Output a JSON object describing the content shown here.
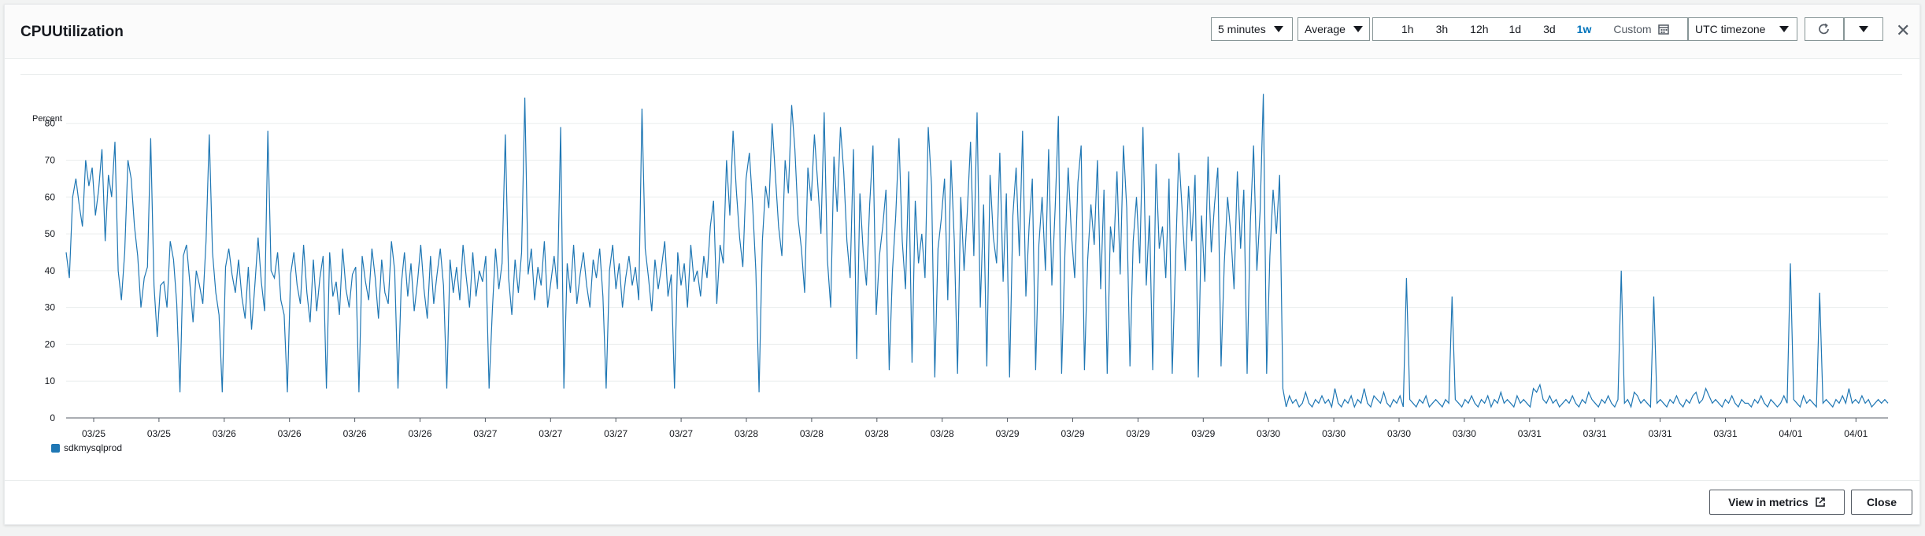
{
  "modal": {
    "title": "CPUUtilization",
    "period": {
      "value": "5 minutes"
    },
    "statistic": {
      "value": "Average"
    },
    "timerange": {
      "options": [
        "1h",
        "3h",
        "12h",
        "1d",
        "3d",
        "1w"
      ],
      "selected": "1w",
      "custom_label": "Custom"
    },
    "timezone": {
      "value": "UTC timezone"
    },
    "footer": {
      "view_in_metrics": "View in metrics",
      "close": "Close"
    }
  },
  "colors": {
    "series": "#1f77b4",
    "accent": "#0073bb"
  },
  "icons": [
    "calendar-icon",
    "refresh-icon",
    "caret-down-icon",
    "close-icon",
    "external-link-icon"
  ],
  "chart_data": {
    "type": "line",
    "ylabel": "Percent",
    "ylim": [
      0,
      87
    ],
    "yticks": [
      0,
      10,
      20,
      30,
      40,
      50,
      60,
      70,
      80
    ],
    "x_tick_labels": [
      "03/25",
      "03/25",
      "03/26",
      "03/26",
      "03/26",
      "03/26",
      "03/27",
      "03/27",
      "03/27",
      "03/27",
      "03/28",
      "03/28",
      "03/28",
      "03/28",
      "03/29",
      "03/29",
      "03/29",
      "03/29",
      "03/30",
      "03/30",
      "03/30",
      "03/30",
      "03/31",
      "03/31",
      "03/31",
      "03/31",
      "04/01",
      "04/01"
    ],
    "grid": true,
    "legend_position": "bottom-left",
    "series": [
      {
        "name": "sdkmysqlprod",
        "color": "#1f77b4",
        "values": [
          45,
          38,
          60,
          65,
          58,
          52,
          70,
          63,
          68,
          55,
          62,
          73,
          48,
          66,
          60,
          75,
          40,
          32,
          45,
          70,
          65,
          52,
          44,
          30,
          38,
          41,
          76,
          36,
          22,
          36,
          37,
          30,
          48,
          43,
          31,
          7,
          44,
          47,
          37,
          26,
          40,
          36,
          31,
          48,
          77,
          45,
          34,
          28,
          7,
          41,
          46,
          39,
          34,
          43,
          33,
          27,
          41,
          24,
          36,
          49,
          37,
          29,
          78,
          40,
          38,
          45,
          32,
          28,
          7,
          39,
          45,
          36,
          31,
          47,
          34,
          26,
          43,
          29,
          38,
          44,
          8,
          45,
          33,
          37,
          28,
          46,
          35,
          30,
          39,
          41,
          7,
          44,
          37,
          32,
          46,
          38,
          27,
          43,
          34,
          31,
          48,
          40,
          8,
          36,
          45,
          33,
          42,
          29,
          37,
          47,
          35,
          27,
          44,
          31,
          39,
          46,
          36,
          8,
          43,
          34,
          41,
          32,
          47,
          38,
          30,
          45,
          33,
          40,
          37,
          44,
          8,
          29,
          46,
          35,
          42,
          77,
          38,
          28,
          43,
          34,
          45,
          87,
          39,
          46,
          32,
          41,
          36,
          48,
          30,
          37,
          44,
          35,
          79,
          8,
          42,
          34,
          47,
          31,
          39,
          45,
          36,
          30,
          43,
          38,
          46,
          33,
          8,
          40,
          47,
          35,
          42,
          30,
          38,
          44,
          36,
          41,
          32,
          84,
          46,
          38,
          29,
          43,
          35,
          41,
          48,
          33,
          39,
          8,
          45,
          36,
          42,
          30,
          47,
          37,
          40,
          33,
          44,
          38,
          52,
          59,
          31,
          47,
          42,
          70,
          55,
          78,
          62,
          49,
          41,
          65,
          72,
          58,
          40,
          7,
          48,
          63,
          57,
          80,
          66,
          52,
          44,
          70,
          61,
          85,
          73,
          54,
          46,
          34,
          68,
          59,
          77,
          64,
          50,
          83,
          43,
          30,
          71,
          56,
          79,
          67,
          48,
          38,
          73,
          16,
          61,
          45,
          36,
          58,
          74,
          28,
          44,
          52,
          62,
          13,
          40,
          55,
          76,
          48,
          35,
          67,
          15,
          59,
          42,
          50,
          38,
          79,
          63,
          11,
          46,
          54,
          65,
          32,
          70,
          48,
          12,
          60,
          40,
          56,
          75,
          44,
          83,
          30,
          58,
          14,
          66,
          49,
          42,
          72,
          37,
          61,
          11,
          55,
          68,
          44,
          78,
          33,
          52,
          65,
          13,
          47,
          60,
          40,
          73,
          36,
          57,
          82,
          12,
          45,
          68,
          50,
          38,
          64,
          74,
          13,
          43,
          58,
          47,
          70,
          35,
          62,
          12,
          52,
          45,
          67,
          39,
          74,
          57,
          14,
          48,
          60,
          42,
          79,
          36,
          55,
          13,
          69,
          46,
          52,
          38,
          65,
          12,
          43,
          72,
          57,
          40,
          63,
          48,
          66,
          11,
          55,
          37,
          71,
          45,
          58,
          68,
          14,
          42,
          60,
          50,
          35,
          67,
          46,
          62,
          12,
          53,
          74,
          40,
          56,
          88,
          12,
          44,
          62,
          50,
          66,
          8,
          3,
          6,
          4,
          5,
          3,
          4,
          7,
          4,
          3,
          5,
          4,
          6,
          4,
          5,
          3,
          8,
          4,
          3,
          5,
          4,
          6,
          3,
          5,
          4,
          8,
          4,
          3,
          6,
          5,
          4,
          7,
          4,
          3,
          5,
          4,
          6,
          3,
          38,
          5,
          4,
          3,
          5,
          4,
          6,
          3,
          4,
          5,
          4,
          3,
          5,
          4,
          33,
          5,
          4,
          3,
          5,
          4,
          6,
          4,
          3,
          5,
          4,
          6,
          3,
          5,
          4,
          7,
          4,
          5,
          4,
          3,
          6,
          4,
          5,
          4,
          3,
          8,
          7,
          9,
          5,
          4,
          6,
          4,
          5,
          3,
          4,
          5,
          4,
          6,
          4,
          3,
          5,
          4,
          7,
          5,
          4,
          3,
          5,
          4,
          6,
          4,
          3,
          5,
          40,
          4,
          5,
          3,
          7,
          6,
          4,
          5,
          4,
          3,
          33,
          4,
          5,
          4,
          3,
          5,
          4,
          6,
          4,
          3,
          5,
          4,
          6,
          7,
          4,
          5,
          8,
          6,
          4,
          5,
          4,
          3,
          5,
          4,
          6,
          4,
          3,
          5,
          4,
          4,
          3,
          5,
          4,
          6,
          4,
          3,
          5,
          4,
          3,
          4,
          6,
          4,
          42,
          5,
          4,
          3,
          6,
          4,
          5,
          4,
          3,
          34,
          4,
          5,
          4,
          3,
          5,
          4,
          6,
          4,
          8,
          4,
          5,
          4,
          6,
          4,
          5,
          3,
          4,
          5,
          4,
          5,
          4
        ]
      }
    ]
  }
}
